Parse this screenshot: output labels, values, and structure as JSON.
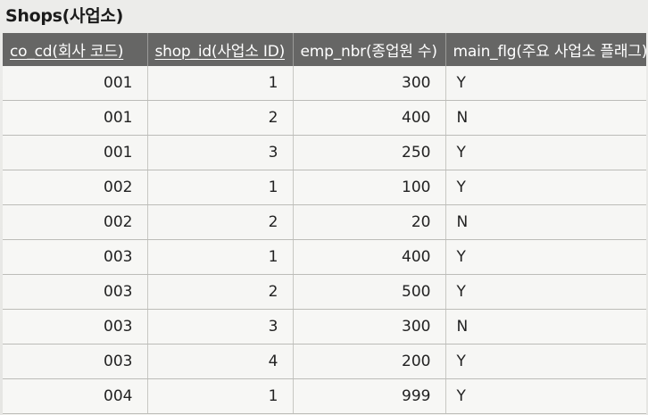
{
  "document": {
    "title": "Shops(사업소)",
    "table": {
      "headers": [
        {
          "label": "co_cd(회사 코드)",
          "underline": true
        },
        {
          "label": "shop_id(사업소 ID)",
          "underline": true
        },
        {
          "label": "emp_nbr(종업원 수)",
          "underline": false
        },
        {
          "label": "main_flg(주요 사업소 플래그)",
          "underline": false
        }
      ],
      "rows": [
        {
          "co_cd": "001",
          "shop_id": "1",
          "emp_nbr": "300",
          "main_flg": "Y"
        },
        {
          "co_cd": "001",
          "shop_id": "2",
          "emp_nbr": "400",
          "main_flg": "N"
        },
        {
          "co_cd": "001",
          "shop_id": "3",
          "emp_nbr": "250",
          "main_flg": "Y"
        },
        {
          "co_cd": "002",
          "shop_id": "1",
          "emp_nbr": "100",
          "main_flg": "Y"
        },
        {
          "co_cd": "002",
          "shop_id": "2",
          "emp_nbr": "20",
          "main_flg": "N"
        },
        {
          "co_cd": "003",
          "shop_id": "1",
          "emp_nbr": "400",
          "main_flg": "Y"
        },
        {
          "co_cd": "003",
          "shop_id": "2",
          "emp_nbr": "500",
          "main_flg": "Y"
        },
        {
          "co_cd": "003",
          "shop_id": "3",
          "emp_nbr": "300",
          "main_flg": "N"
        },
        {
          "co_cd": "003",
          "shop_id": "4",
          "emp_nbr": "200",
          "main_flg": "Y"
        },
        {
          "co_cd": "004",
          "shop_id": "1",
          "emp_nbr": "999",
          "main_flg": "Y"
        }
      ]
    }
  }
}
